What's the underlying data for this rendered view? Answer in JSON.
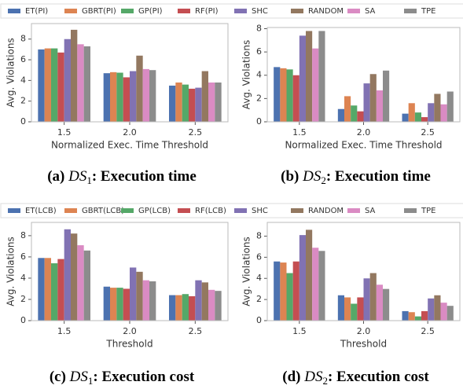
{
  "chart_data": [
    {
      "type": "bar",
      "ylabel": "Avg. Violations",
      "xlabel": "Normalized Exec. Time Threshold",
      "legend": "top",
      "caption": {
        "label": "(a)",
        "symbol": "DS",
        "subscript": "1",
        "text": ": Execution time"
      },
      "categories": [
        "1.5",
        "2.0",
        "2.5"
      ],
      "ylim": [
        0,
        9.5
      ],
      "yticks": [
        0,
        2,
        4,
        6,
        8
      ],
      "series": [
        {
          "name": "ET(PI)",
          "color": "#4c72b0",
          "values": [
            7.0,
            4.7,
            3.5
          ]
        },
        {
          "name": "GBRT(PI)",
          "color": "#dd8452",
          "values": [
            7.1,
            4.8,
            3.8
          ]
        },
        {
          "name": "GP(PI)",
          "color": "#55a868",
          "values": [
            7.1,
            4.75,
            3.6
          ]
        },
        {
          "name": "RF(PI)",
          "color": "#c44e52",
          "values": [
            6.7,
            4.3,
            3.2
          ]
        },
        {
          "name": "SHC",
          "color": "#8172b3",
          "values": [
            8.0,
            4.9,
            3.3
          ]
        },
        {
          "name": "RANDOM",
          "color": "#937860",
          "values": [
            8.9,
            6.4,
            4.9
          ]
        },
        {
          "name": "SA",
          "color": "#da8bc3",
          "values": [
            7.5,
            5.1,
            3.8
          ]
        },
        {
          "name": "TPE",
          "color": "#8c8c8c",
          "values": [
            7.3,
            5.0,
            3.8
          ]
        }
      ]
    },
    {
      "type": "bar",
      "ylabel": "Avg. Violations",
      "xlabel": "Normalized Exec. Time Threshold",
      "caption": {
        "label": "(b)",
        "symbol": "DS",
        "subscript": "2",
        "text": ": Execution time"
      },
      "categories": [
        "1.5",
        "2.0",
        "2.5"
      ],
      "ylim": [
        0,
        8.1
      ],
      "yticks": [
        0,
        2,
        4,
        6,
        8
      ],
      "series": [
        {
          "color": "#4c72b0",
          "values": [
            4.7,
            1.1,
            0.7
          ]
        },
        {
          "color": "#dd8452",
          "values": [
            4.6,
            2.2,
            1.6
          ]
        },
        {
          "color": "#55a868",
          "values": [
            4.5,
            1.4,
            0.8
          ]
        },
        {
          "color": "#c44e52",
          "values": [
            4.0,
            0.9,
            0.4
          ]
        },
        {
          "color": "#8172b3",
          "values": [
            7.4,
            3.3,
            1.6
          ]
        },
        {
          "color": "#937860",
          "values": [
            7.8,
            4.1,
            2.4
          ]
        },
        {
          "color": "#da8bc3",
          "values": [
            6.3,
            2.7,
            1.5
          ]
        },
        {
          "color": "#8c8c8c",
          "values": [
            7.8,
            4.4,
            2.6
          ]
        }
      ]
    },
    {
      "type": "bar",
      "ylabel": "Avg. Violations",
      "xlabel": "Threshold",
      "legend": "top",
      "caption": {
        "label": "(c)",
        "symbol": "DS",
        "subscript": "1",
        "text": ": Execution cost"
      },
      "categories": [
        "1.5",
        "2.0",
        "2.5"
      ],
      "ylim": [
        0,
        9.25
      ],
      "yticks": [
        0,
        2,
        4,
        6,
        8
      ],
      "series": [
        {
          "name": "ET(LCB)",
          "color": "#4c72b0",
          "values": [
            5.9,
            3.2,
            2.4
          ]
        },
        {
          "name": "GBRT(LCB)",
          "color": "#dd8452",
          "values": [
            5.9,
            3.1,
            2.4
          ]
        },
        {
          "name": "GP(LCB)",
          "color": "#55a868",
          "values": [
            5.4,
            3.1,
            2.5
          ]
        },
        {
          "name": "RF(LCB)",
          "color": "#c44e52",
          "values": [
            5.8,
            3.0,
            2.3
          ]
        },
        {
          "name": "SHC",
          "color": "#8172b3",
          "values": [
            8.6,
            5.0,
            3.8
          ]
        },
        {
          "name": "RANDOM",
          "color": "#937860",
          "values": [
            8.2,
            4.6,
            3.6
          ]
        },
        {
          "name": "SA",
          "color": "#da8bc3",
          "values": [
            7.1,
            3.8,
            2.9
          ]
        },
        {
          "name": "TPE",
          "color": "#8c8c8c",
          "values": [
            6.6,
            3.7,
            2.8
          ]
        }
      ]
    },
    {
      "type": "bar",
      "ylabel": "Avg. Violations",
      "xlabel": "Threshold",
      "caption": {
        "label": "(d)",
        "symbol": "DS",
        "subscript": "2",
        "text": ": Execution cost"
      },
      "categories": [
        "1.5",
        "2.0",
        "2.5"
      ],
      "ylim": [
        0,
        9.3
      ],
      "yticks": [
        0,
        2,
        4,
        6,
        8
      ],
      "series": [
        {
          "color": "#4c72b0",
          "values": [
            5.6,
            2.4,
            0.9
          ]
        },
        {
          "color": "#dd8452",
          "values": [
            5.5,
            2.2,
            0.8
          ]
        },
        {
          "color": "#55a868",
          "values": [
            4.5,
            1.6,
            0.4
          ]
        },
        {
          "color": "#c44e52",
          "values": [
            5.6,
            2.2,
            0.9
          ]
        },
        {
          "color": "#8172b3",
          "values": [
            8.1,
            4.0,
            2.1
          ]
        },
        {
          "color": "#937860",
          "values": [
            8.6,
            4.5,
            2.4
          ]
        },
        {
          "color": "#da8bc3",
          "values": [
            6.9,
            3.4,
            1.7
          ]
        },
        {
          "color": "#8c8c8c",
          "values": [
            6.6,
            3.0,
            1.4
          ]
        }
      ]
    }
  ]
}
